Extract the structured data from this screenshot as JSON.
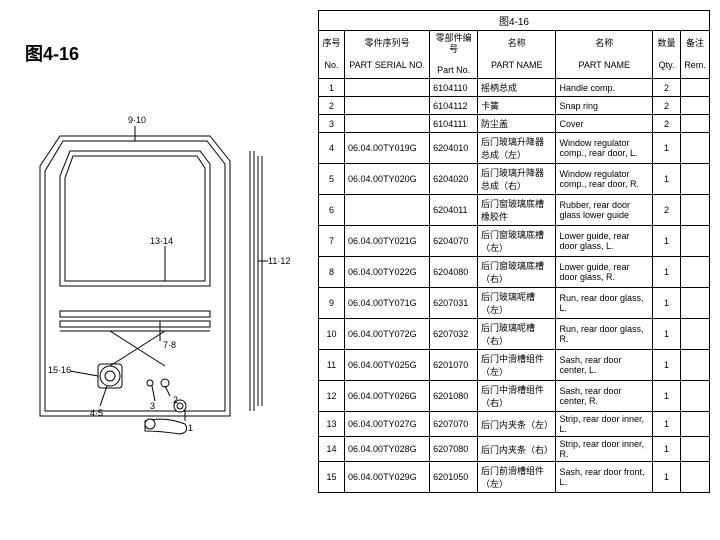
{
  "figure_title": "图4-16",
  "table_caption": "图4-16",
  "headers": {
    "no_cn": "序号",
    "no_en": "No.",
    "serial_cn": "零件序列号",
    "serial_en": "PART SERIAL NO.",
    "part_cn": "零部件编号",
    "part_en": "Part No.",
    "name1_cn": "名称",
    "name1_en": "PART NAME",
    "name2_cn": "名称",
    "name2_en": "PART NAME",
    "qty_cn": "数量",
    "qty_en": "Qty.",
    "rem_cn": "备注",
    "rem_en": "Rem.",
    "col_widths": [
      "20px",
      "80px",
      "42px",
      "80px",
      "100px",
      "22px",
      "22px"
    ]
  },
  "rows": [
    {
      "no": "1",
      "serial": "",
      "part": "6104110",
      "name_cn": "摇柄总成",
      "name_en": "Handle comp.",
      "qty": "2",
      "rem": ""
    },
    {
      "no": "2",
      "serial": "",
      "part": "6104112",
      "name_cn": "卡簧",
      "name_en": "Snap ring",
      "qty": "2",
      "rem": ""
    },
    {
      "no": "3",
      "serial": "",
      "part": "6104111",
      "name_cn": "防尘盖",
      "name_en": "Cover",
      "qty": "2",
      "rem": ""
    },
    {
      "no": "4",
      "serial": "06.04.00TY019G",
      "part": "6204010",
      "name_cn": "后门玻璃升降器总成（左）",
      "name_en": "Window regulator comp., rear door, L.",
      "qty": "1",
      "rem": ""
    },
    {
      "no": "5",
      "serial": "06.04.00TY020G",
      "part": "6204020",
      "name_cn": "后门玻璃升降器总成（右）",
      "name_en": "Window regulator comp., rear door, R.",
      "qty": "1",
      "rem": ""
    },
    {
      "no": "6",
      "serial": "",
      "part": "6204011",
      "name_cn": "后门窗玻璃底槽橡胶件",
      "name_en": "Rubber, rear door glass lower guide",
      "qty": "2",
      "rem": ""
    },
    {
      "no": "7",
      "serial": "06.04.00TY021G",
      "part": "6204070",
      "name_cn": "后门窗玻璃底槽（左）",
      "name_en": "Lower guide, rear door glass, L.",
      "qty": "1",
      "rem": ""
    },
    {
      "no": "8",
      "serial": "06.04.00TY022G",
      "part": "6204080",
      "name_cn": "后门窗玻璃底槽（右）",
      "name_en": "Lower guide, rear door glass, R.",
      "qty": "1",
      "rem": ""
    },
    {
      "no": "9",
      "serial": "06.04.00TY071G",
      "part": "6207031",
      "name_cn": "后门玻璃呢槽（左）",
      "name_en": "Run, rear door glass, L.",
      "qty": "1",
      "rem": ""
    },
    {
      "no": "10",
      "serial": "06.04.00TY072G",
      "part": "6207032",
      "name_cn": "后门玻璃呢槽（右）",
      "name_en": "Run, rear door glass, R.",
      "qty": "1",
      "rem": ""
    },
    {
      "no": "11",
      "serial": "06.04.00TY025G",
      "part": "6201070",
      "name_cn": "后门中滑槽组件（左）",
      "name_en": "Sash, rear door center, L.",
      "qty": "1",
      "rem": ""
    },
    {
      "no": "12",
      "serial": "06.04.00TY026G",
      "part": "6201080",
      "name_cn": "后门中滑槽组件（右）",
      "name_en": "Sash, rear door center, R.",
      "qty": "1",
      "rem": ""
    },
    {
      "no": "13",
      "serial": "06.04.00TY027G",
      "part": "6207070",
      "name_cn": "后门内夹条（左）",
      "name_en": "Strip, rear door inner, L.",
      "qty": "1",
      "rem": ""
    },
    {
      "no": "14",
      "serial": "06.04.00TY028G",
      "part": "6207080",
      "name_cn": "后门内夹条（右）",
      "name_en": "Strip, rear door inner, R.",
      "qty": "1",
      "rem": ""
    },
    {
      "no": "15",
      "serial": "06.04.00TY029G",
      "part": "6201050",
      "name_cn": "后门前滑槽组件（左）",
      "name_en": "Sash, rear door front, L.",
      "qty": "1",
      "rem": ""
    }
  ],
  "callouts": [
    "9·10",
    "11·12",
    "13·14",
    "7·8",
    "15·16",
    "4·5",
    "1",
    "2",
    "3"
  ],
  "styling": {
    "border_color": "#000000",
    "background_color": "#ffffff",
    "table_font_size": 9,
    "title_font_size": 18,
    "diagram_stroke": "#000000",
    "diagram_stroke_width": 1
  }
}
